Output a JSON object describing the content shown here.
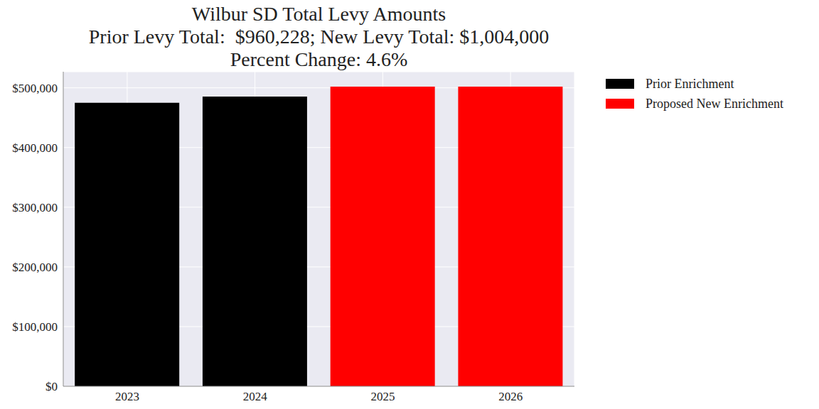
{
  "chart_data": {
    "type": "bar",
    "title": "Wilbur SD Total Levy Amounts\nPrior Levy Total:  $960,228; New Levy Total: $1,004,000\nPercent Change: 4.6%",
    "categories": [
      "2023",
      "2024",
      "2025",
      "2026"
    ],
    "series": [
      {
        "name": "Prior Enrichment",
        "color": "#000000",
        "values": [
          475000,
          485228,
          null,
          null
        ]
      },
      {
        "name": "Proposed New Enrichment",
        "color": "#ff0000",
        "values": [
          null,
          null,
          502000,
          502000
        ]
      }
    ],
    "stacked": true,
    "ylim": [
      0,
      527000
    ],
    "yticks": [
      {
        "value": 0,
        "label": "$0"
      },
      {
        "value": 100000,
        "label": "$100,000"
      },
      {
        "value": 200000,
        "label": "$200,000"
      },
      {
        "value": 300000,
        "label": "$300,000"
      },
      {
        "value": 400000,
        "label": "$400,000"
      },
      {
        "value": 500000,
        "label": "$500,000"
      }
    ],
    "grid": true,
    "legend": "right"
  }
}
